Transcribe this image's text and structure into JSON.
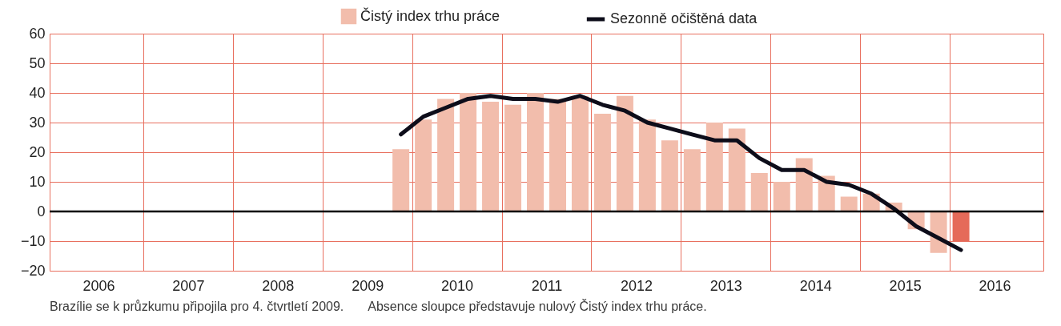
{
  "chart_data": {
    "type": "bar",
    "x": [
      2009.875,
      2010.125,
      2010.375,
      2010.625,
      2010.875,
      2011.125,
      2011.375,
      2011.625,
      2011.875,
      2012.125,
      2012.375,
      2012.625,
      2012.875,
      2013.125,
      2013.375,
      2013.625,
      2013.875,
      2014.125,
      2014.375,
      2014.625,
      2014.875,
      2015.125,
      2015.375,
      2015.625,
      2015.875,
      2016.125
    ],
    "series": [
      {
        "name": "Čistý index trhu práce",
        "color": "#f2bdac",
        "colors": [
          "#f2bdac",
          "#f2bdac",
          "#f2bdac",
          "#f2bdac",
          "#f2bdac",
          "#f2bdac",
          "#f2bdac",
          "#f2bdac",
          "#f2bdac",
          "#f2bdac",
          "#f2bdac",
          "#f2bdac",
          "#f2bdac",
          "#f2bdac",
          "#f2bdac",
          "#f2bdac",
          "#f2bdac",
          "#f2bdac",
          "#f2bdac",
          "#f2bdac",
          "#f2bdac",
          "#f2bdac",
          "#f2bdac",
          "#f2bdac",
          "#f2bdac",
          "#e56a59"
        ],
        "values": [
          21,
          31,
          38,
          40,
          37,
          36,
          40,
          38,
          39,
          33,
          39,
          31,
          24,
          21,
          30,
          28,
          13,
          10,
          18,
          12,
          5,
          6,
          3,
          -6,
          -14,
          -10
        ]
      },
      {
        "name": "Sezonně očištěná data",
        "type": "line",
        "color": "#0d0d1a",
        "values": [
          26,
          32,
          35,
          38,
          39,
          38,
          38,
          37,
          39,
          36,
          34,
          30,
          28,
          26,
          24,
          24,
          18,
          14,
          14,
          10,
          9,
          6,
          1,
          -5,
          -9,
          -13
        ]
      }
    ],
    "xlim": [
      2006,
      2017
    ],
    "xticks": [
      {
        "value": 2006.5,
        "label": "2006"
      },
      {
        "value": 2007,
        "label": null
      },
      {
        "value": 2007.5,
        "label": "2007"
      },
      {
        "value": 2008,
        "label": null
      },
      {
        "value": 2008.5,
        "label": "2008"
      },
      {
        "value": 2009,
        "label": null
      },
      {
        "value": 2009.5,
        "label": "2009"
      },
      {
        "value": 2010,
        "label": null
      },
      {
        "value": 2010.5,
        "label": "2010"
      },
      {
        "value": 2011,
        "label": null
      },
      {
        "value": 2011.5,
        "label": "2011"
      },
      {
        "value": 2012,
        "label": null
      },
      {
        "value": 2012.5,
        "label": "2012"
      },
      {
        "value": 2013,
        "label": null
      },
      {
        "value": 2013.5,
        "label": "2013"
      },
      {
        "value": 2014,
        "label": null
      },
      {
        "value": 2014.5,
        "label": "2014"
      },
      {
        "value": 2015,
        "label": null
      },
      {
        "value": 2015.5,
        "label": "2015"
      },
      {
        "value": 2016,
        "label": null
      },
      {
        "value": 2016.5,
        "label": "2016"
      }
    ],
    "ylim": [
      -20,
      60
    ],
    "yticks": [
      -20,
      -10,
      0,
      10,
      20,
      30,
      40,
      50,
      60
    ],
    "grid": true,
    "legend": "top",
    "ref_lines": [
      {
        "axis": "y",
        "value": 0,
        "color": "#000000"
      }
    ],
    "annotations": [
      "Brazílie se k průzkumu připojila pro 4. čtvrtletí 2009.",
      "Absence sloupce představuje nulový Čistý index trhu práce."
    ]
  }
}
